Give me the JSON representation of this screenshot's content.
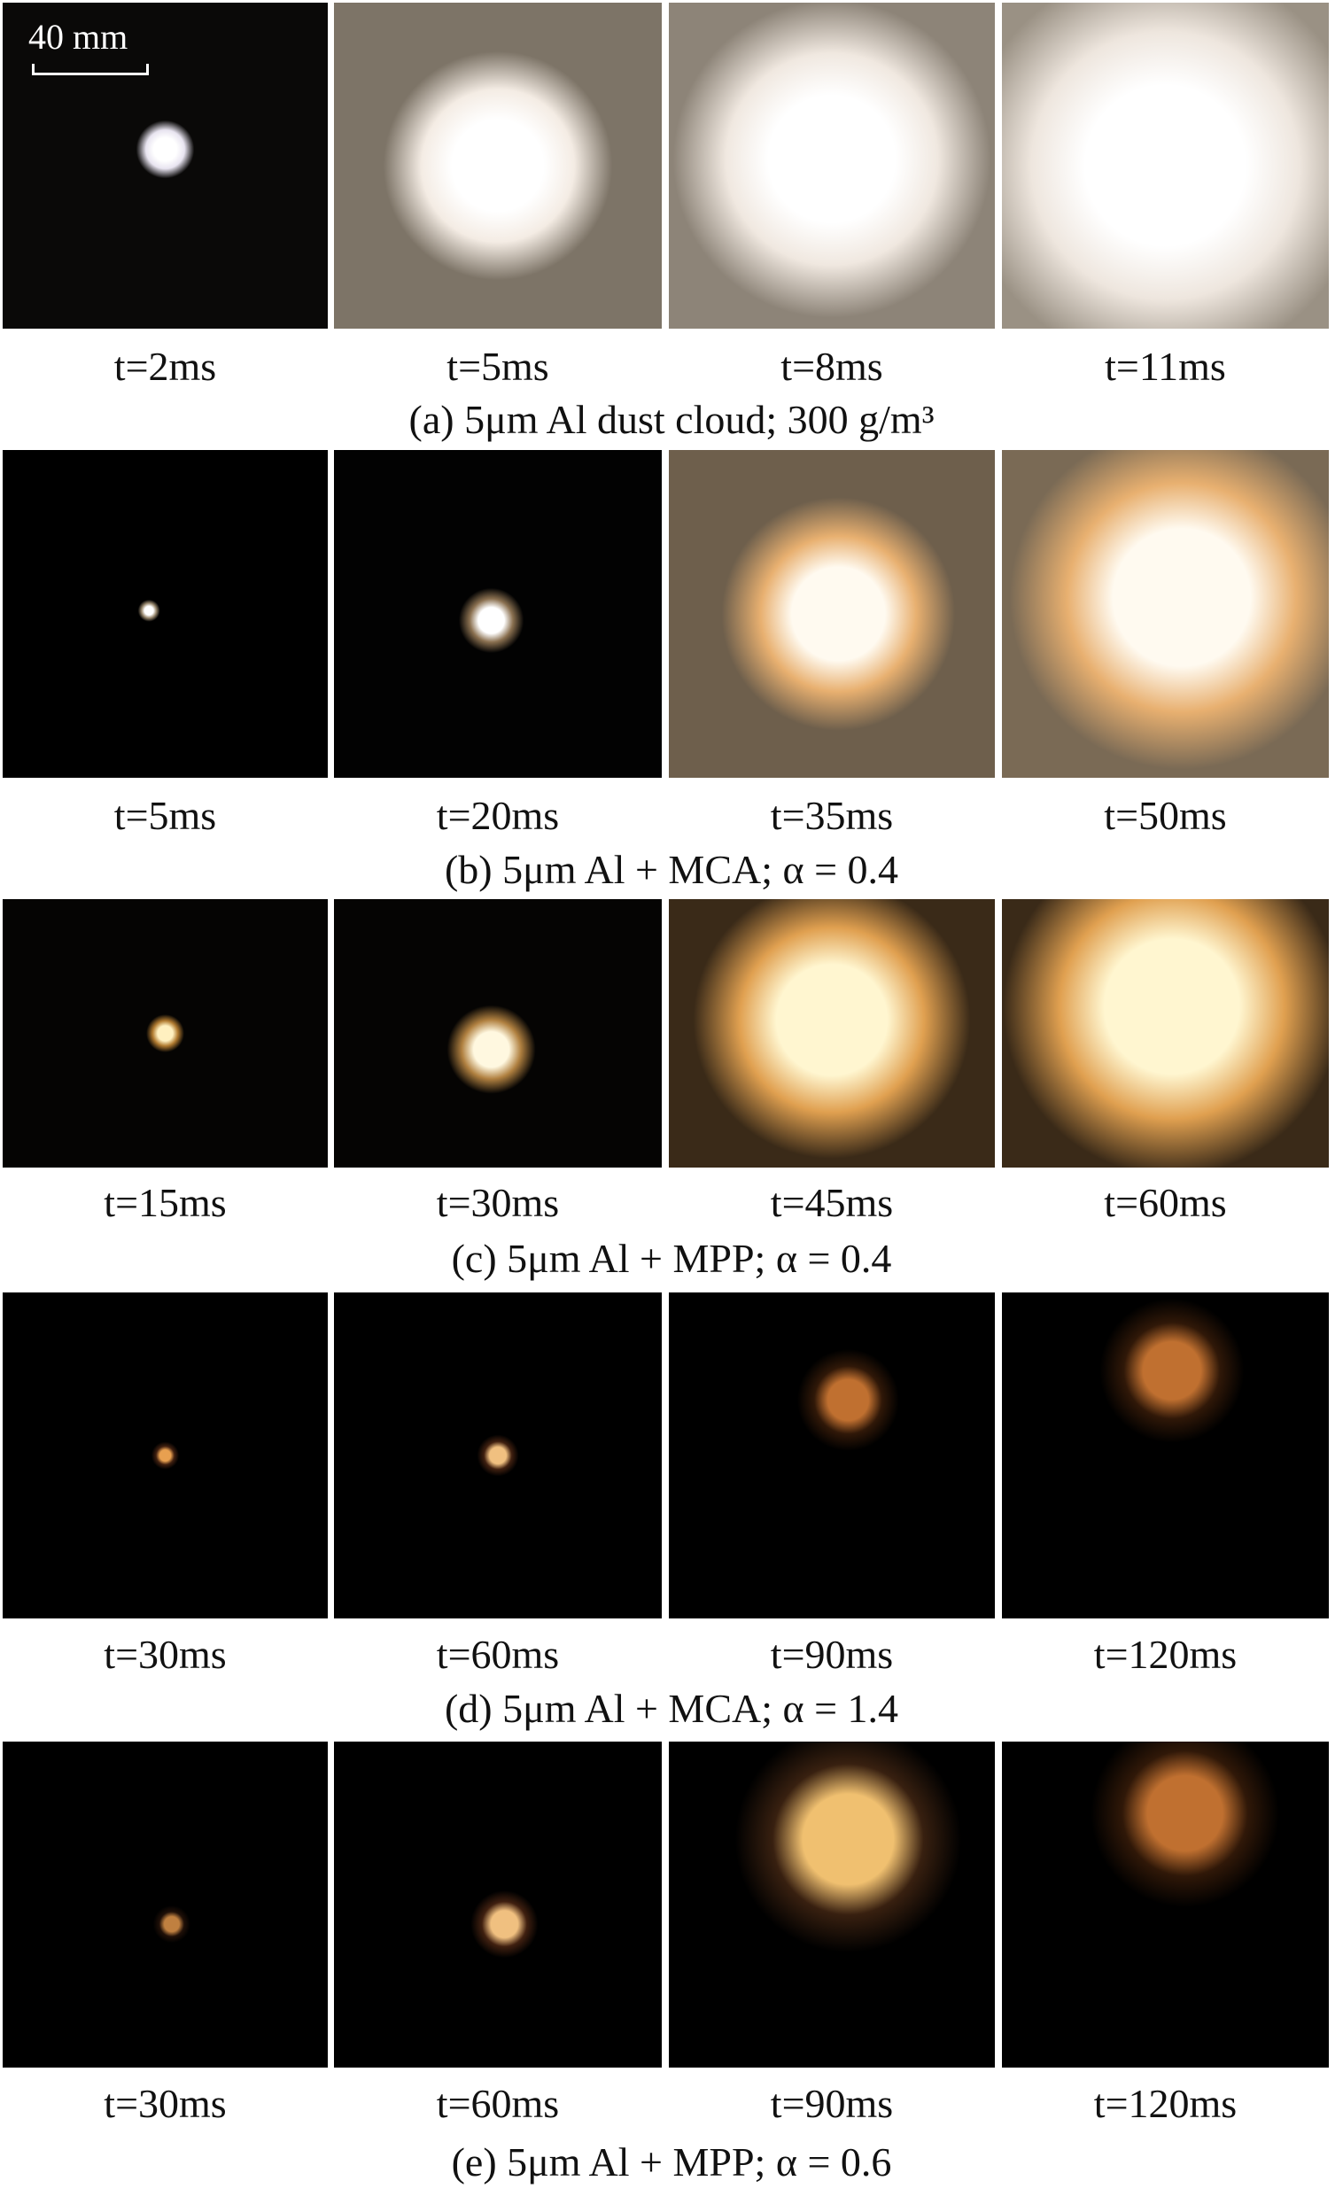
{
  "scale_bar": "40 mm",
  "rows": [
    {
      "times": [
        "t=2ms",
        "t=5ms",
        "t=8ms",
        "t=11ms"
      ],
      "caption": "(a) 5μm Al dust cloud; 300 g/m³"
    },
    {
      "times": [
        "t=5ms",
        "t=20ms",
        "t=35ms",
        "t=50ms"
      ],
      "caption": "(b) 5μm Al + MCA; α = 0.4"
    },
    {
      "times": [
        "t=15ms",
        "t=30ms",
        "t=45ms",
        "t=60ms"
      ],
      "caption": "(c) 5μm Al + MPP; α = 0.4"
    },
    {
      "times": [
        "t=30ms",
        "t=60ms",
        "t=90ms",
        "t=120ms"
      ],
      "caption": "(d) 5μm Al + MCA; α = 1.4"
    },
    {
      "times": [
        "t=30ms",
        "t=60ms",
        "t=90ms",
        "t=120ms"
      ],
      "caption": "(e) 5μm Al + MPP; α = 0.6"
    }
  ]
}
